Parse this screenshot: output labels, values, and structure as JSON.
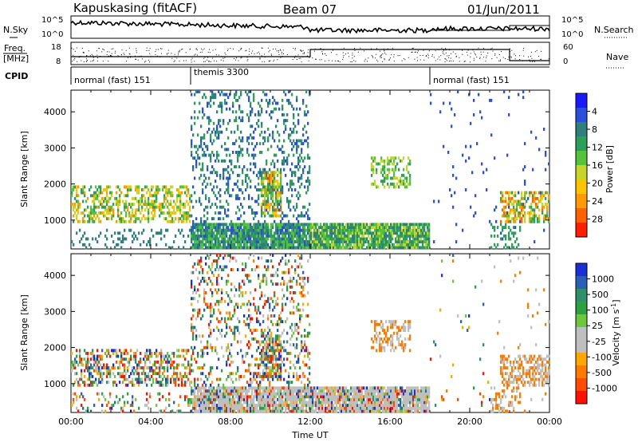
{
  "header": {
    "station": "Kapuskasing (fitACF)",
    "beam": "Beam 07",
    "date": "01/Jun/2011"
  },
  "status_panels": {
    "nsky_label": "N.Sky",
    "nsearch_label": "N.Search",
    "nsky_ticks": [
      "10^5",
      "10^0"
    ],
    "nsearch_ticks": [
      "10^5",
      "10^0"
    ],
    "freq_label_1": "Freq.",
    "freq_label_2": "[MHz]",
    "freq_ticks": [
      "18",
      "8"
    ],
    "nave_label": "Nave",
    "nave_ticks": [
      "60",
      "0"
    ],
    "cpid_label": "CPID",
    "cpid_segments": [
      {
        "label": "normal (fast) 151",
        "start": 0,
        "end": 6
      },
      {
        "label": "themis 3300",
        "start": 6,
        "end": 18
      },
      {
        "label": "normal (fast) 151",
        "start": 18,
        "end": 24
      }
    ]
  },
  "chart_data": [
    {
      "type": "heatmap",
      "name": "power",
      "ylabel": "Slant Range [km]",
      "xlabel": "",
      "x_range_hours": [
        0,
        24
      ],
      "ylim": [
        200,
        4600
      ],
      "yticks": [
        "1000",
        "2000",
        "3000",
        "4000"
      ],
      "colorbar": {
        "label": "Power [dB]",
        "ticks": [
          "4",
          "8",
          "12",
          "16",
          "20",
          "24",
          "28"
        ],
        "colors": [
          "#1a1aff",
          "#2a4fd8",
          "#2f7f7f",
          "#2e9f5a",
          "#56c43a",
          "#c8d42a",
          "#ffc400",
          "#ff9a00",
          "#ff6000",
          "#ff1e00"
        ]
      }
    },
    {
      "type": "heatmap",
      "name": "velocity",
      "ylabel": "Slant Range [km]",
      "xlabel": "Time UT",
      "x_range_hours": [
        0,
        24
      ],
      "ylim": [
        200,
        4600
      ],
      "yticks": [
        "1000",
        "2000",
        "3000",
        "4000"
      ],
      "xticks": [
        "00:00",
        "04:00",
        "08:00",
        "12:00",
        "16:00",
        "20:00",
        "00:00"
      ],
      "colorbar": {
        "label": "Velocity [m s",
        "label_sup": "-1",
        "label_end": "]",
        "ticks": [
          "1000",
          "500",
          "100",
          "25",
          "-25",
          "-100",
          "-500",
          "-1000"
        ],
        "colors": [
          "#1a2fd6",
          "#2a5fb4",
          "#2f8f6a",
          "#2ea040",
          "#6cc83a",
          "#bfbfbf",
          "#bfbfbf",
          "#ffa800",
          "#ff7a00",
          "#ff4a00",
          "#ff1000"
        ]
      }
    }
  ]
}
